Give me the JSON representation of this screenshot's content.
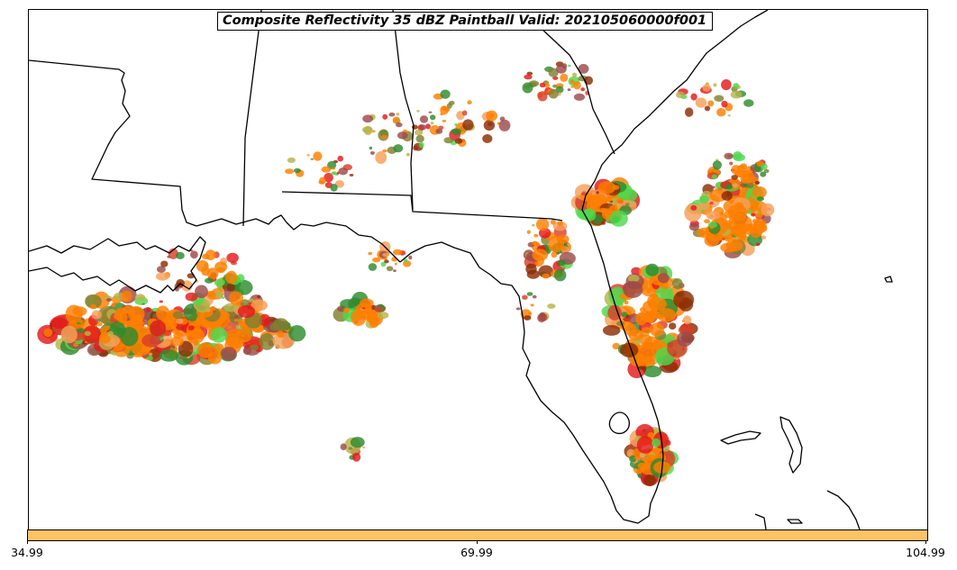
{
  "title": "Composite Reflectivity 35 dBZ Paintball Valid: 202105060000f001",
  "colors": {
    "colorbar_fill": "#ffc266",
    "coastline": "#000000",
    "ensemble_members": [
      "#ff7f00",
      "#e31a1c",
      "#8c2d04",
      "#9c4a4a",
      "#808030",
      "#b5b54a",
      "#4dd94d",
      "#2e8b2e",
      "#f5a05a",
      "#d9402b"
    ]
  },
  "colorbar": {
    "ticks": [
      "34.99",
      "69.99",
      "104.99"
    ]
  }
}
